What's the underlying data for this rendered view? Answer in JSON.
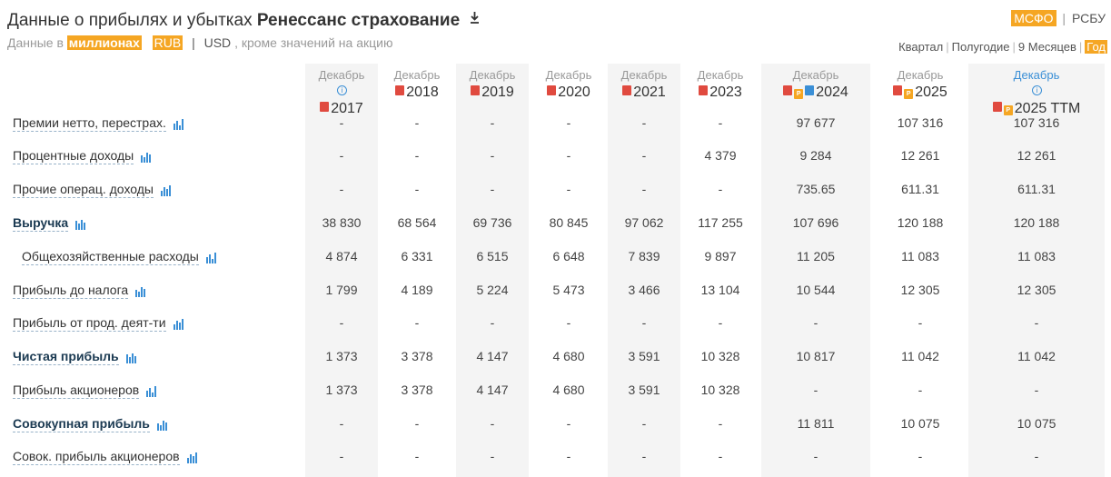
{
  "header": {
    "title_prefix": "Данные о прибылях и убытках",
    "company": "Ренессанс страхование",
    "download_icon": "download-icon",
    "subtitle_prefix": "Данные в",
    "units": "миллионах",
    "currency_active": "RUB",
    "currency_alt": "USD",
    "subtitle_suffix": ", кроме значений на акцию",
    "standard_active": "МСФО",
    "standard_alt": "РСБУ",
    "periods": [
      "Квартал",
      "Полугодие",
      "9 Месяцев",
      "Год"
    ],
    "period_active": "Год"
  },
  "columns": [
    {
      "month": "Декабрь",
      "year": "2017",
      "icons": [
        "pdf"
      ],
      "info": true
    },
    {
      "month": "Декабрь",
      "year": "2018",
      "icons": [
        "pdf"
      ],
      "info": false
    },
    {
      "month": "Декабрь",
      "year": "2019",
      "icons": [
        "pdf"
      ],
      "info": false
    },
    {
      "month": "Декабрь",
      "year": "2020",
      "icons": [
        "pdf"
      ],
      "info": false
    },
    {
      "month": "Декабрь",
      "year": "2021",
      "icons": [
        "pdf"
      ],
      "info": false
    },
    {
      "month": "Декабрь",
      "year": "2023",
      "icons": [
        "pdf"
      ],
      "info": false
    },
    {
      "month": "Декабрь",
      "year": "2024",
      "icons": [
        "pdf",
        "p",
        "pres"
      ],
      "info": false
    },
    {
      "month": "Декабрь",
      "year": "2025",
      "icons": [
        "pdf",
        "p"
      ],
      "info": false
    },
    {
      "month": "Декабрь",
      "year": "2025 TTM",
      "icons": [
        "pdf",
        "p"
      ],
      "info": true,
      "blue": true
    }
  ],
  "rows": [
    {
      "label": "Премии нетто, перестрах.",
      "bold": false,
      "indent": false,
      "values": [
        "-",
        "-",
        "-",
        "-",
        "-",
        "-",
        "97 677",
        "107 316",
        "107 316"
      ]
    },
    {
      "label": "Процентные доходы",
      "bold": false,
      "indent": false,
      "values": [
        "-",
        "-",
        "-",
        "-",
        "-",
        "4 379",
        "9 284",
        "12 261",
        "12 261"
      ]
    },
    {
      "label": "Прочие операц. доходы",
      "bold": false,
      "indent": false,
      "values": [
        "-",
        "-",
        "-",
        "-",
        "-",
        "-",
        "735.65",
        "611.31",
        "611.31"
      ]
    },
    {
      "label": "Выручка",
      "bold": true,
      "indent": false,
      "values": [
        "38 830",
        "68 564",
        "69 736",
        "80 845",
        "97 062",
        "117 255",
        "107 696",
        "120 188",
        "120 188"
      ]
    },
    {
      "label": "Общехозяйственные расходы",
      "bold": false,
      "indent": true,
      "values": [
        "4 874",
        "6 331",
        "6 515",
        "6 648",
        "7 839",
        "9 897",
        "11 205",
        "11 083",
        "11 083"
      ]
    },
    {
      "label": "Прибыль до налога",
      "bold": false,
      "indent": false,
      "values": [
        "1 799",
        "4 189",
        "5 224",
        "5 473",
        "3 466",
        "13 104",
        "10 544",
        "12 305",
        "12 305"
      ]
    },
    {
      "label": "Прибыль от прод. деят-ти",
      "bold": false,
      "indent": false,
      "values": [
        "-",
        "-",
        "-",
        "-",
        "-",
        "-",
        "-",
        "-",
        "-"
      ]
    },
    {
      "label": "Чистая прибыль",
      "bold": true,
      "indent": false,
      "values": [
        "1 373",
        "3 378",
        "4 147",
        "4 680",
        "3 591",
        "10 328",
        "10 817",
        "11 042",
        "11 042"
      ]
    },
    {
      "label": "Прибыль акционеров",
      "bold": false,
      "indent": false,
      "values": [
        "1 373",
        "3 378",
        "4 147",
        "4 680",
        "3 591",
        "10 328",
        "-",
        "-",
        "-"
      ]
    },
    {
      "label": "Совокупная прибыль",
      "bold": true,
      "indent": false,
      "values": [
        "-",
        "-",
        "-",
        "-",
        "-",
        "-",
        "11 811",
        "10 075",
        "10 075"
      ]
    },
    {
      "label": "Совок. прибыль акционеров",
      "bold": false,
      "indent": false,
      "values": [
        "-",
        "-",
        "-",
        "-",
        "-",
        "-",
        "-",
        "-",
        "-"
      ]
    }
  ],
  "colors": {
    "accent": "#f5a623",
    "link": "#3a8fd6",
    "pdf": "#e04a3f"
  }
}
